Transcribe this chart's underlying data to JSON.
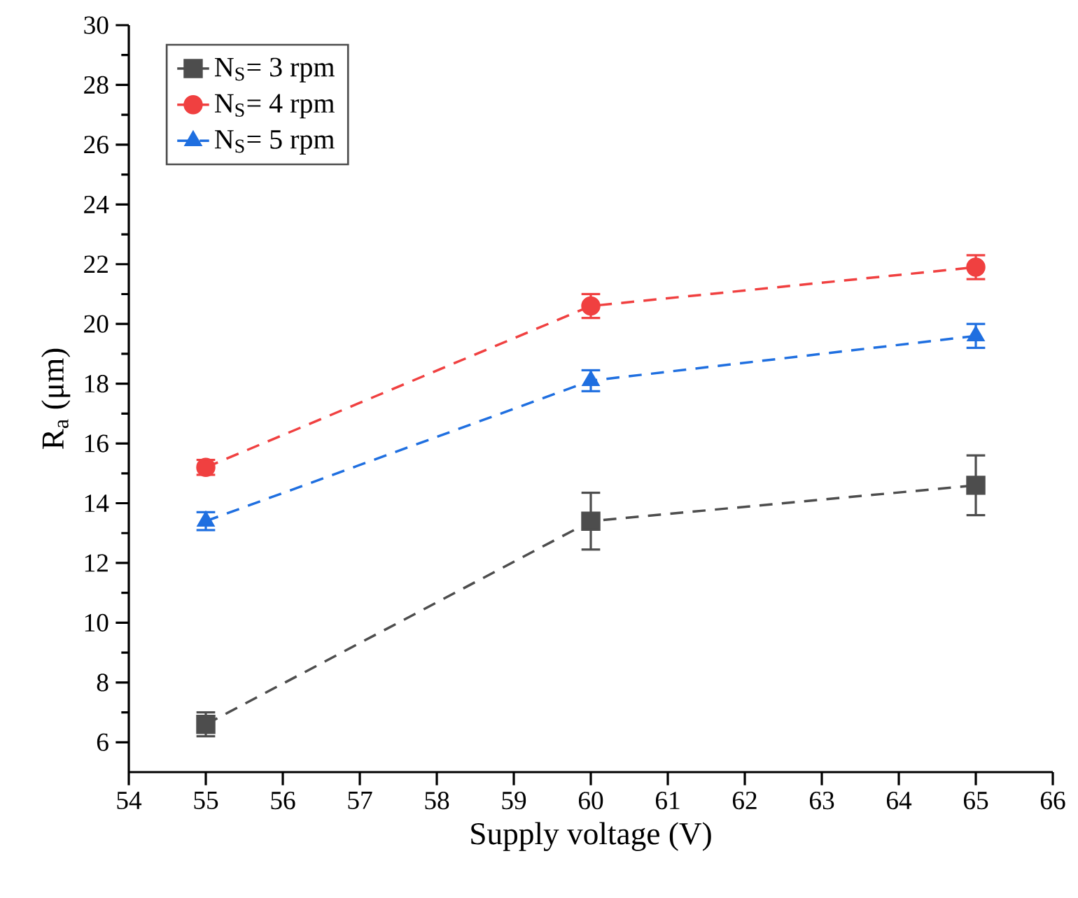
{
  "chart_data": {
    "type": "line",
    "xlabel": "Supply voltage (V)",
    "ylabel": "R$_{a}$ (μm)",
    "x": [
      55,
      60,
      65
    ],
    "xlim": [
      54,
      66
    ],
    "xticks": [
      54,
      55,
      56,
      57,
      58,
      59,
      60,
      61,
      62,
      63,
      64,
      65,
      66
    ],
    "ylim": [
      5,
      30
    ],
    "yticks": [
      6,
      {
        "value": 7,
        "label": null
      },
      8,
      {
        "value": 9,
        "label": null
      },
      10,
      {
        "value": 11,
        "label": null
      },
      12,
      {
        "value": 13,
        "label": null
      },
      14,
      {
        "value": 15,
        "label": null
      },
      16,
      {
        "value": 17,
        "label": null
      },
      18,
      {
        "value": 19,
        "label": null
      },
      20,
      {
        "value": 21,
        "label": null
      },
      22,
      {
        "value": 23,
        "label": null
      },
      24,
      {
        "value": 25,
        "label": null
      },
      26,
      {
        "value": 27,
        "label": null
      },
      28,
      {
        "value": 29,
        "label": null
      },
      30
    ],
    "line_style": "dashed",
    "legend": "top left",
    "grid": false,
    "series": [
      {
        "name": "N$_{S}$= 3 rpm",
        "color": "#4d4d4d",
        "marker": "square",
        "values": [
          6.6,
          13.4,
          14.6
        ],
        "errors": [
          0.4,
          0.95,
          1.0
        ]
      },
      {
        "name": "N$_{S}$= 4 rpm",
        "color": "#f04040",
        "marker": "circle",
        "values": [
          15.2,
          20.6,
          21.9
        ],
        "errors": [
          0.25,
          0.4,
          0.4
        ]
      },
      {
        "name": "N$_{S}$= 5 rpm",
        "color": "#1f6fe0",
        "marker": "triangle",
        "values": [
          13.4,
          18.1,
          19.6
        ],
        "errors": [
          0.3,
          0.35,
          0.4
        ]
      }
    ]
  }
}
